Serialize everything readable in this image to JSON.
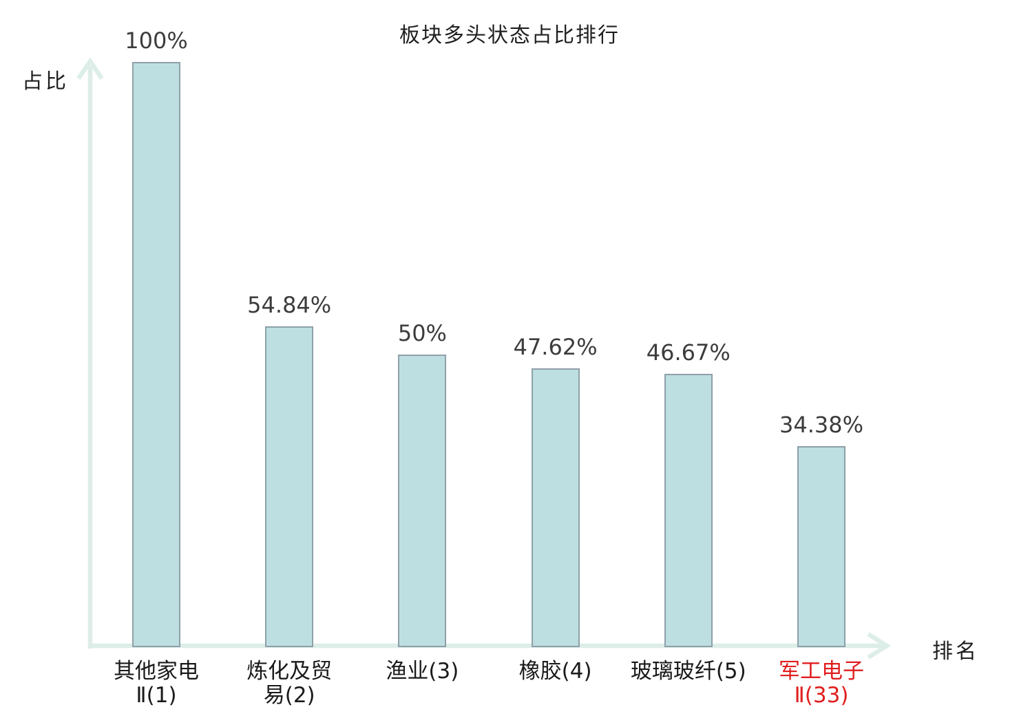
{
  "page": {
    "background": "#ffffff"
  },
  "chart_data": {
    "type": "bar",
    "title": "板块多头状态占比排行",
    "xlabel": "排名",
    "ylabel": "占比",
    "ylim": [
      0,
      100
    ],
    "grid": false,
    "legend": false,
    "categories": [
      "其他家电Ⅱ(1)",
      "炼化及贸易(2)",
      "渔业(3)",
      "橡胶(4)",
      "玻璃玻纤(5)",
      "军工电子Ⅱ(33)"
    ],
    "category_lines": [
      [
        "其他家电",
        "Ⅱ(1)"
      ],
      [
        "炼化及贸",
        "易(2)"
      ],
      [
        "渔业(3)"
      ],
      [
        "橡胶(4)"
      ],
      [
        "玻璃玻纤(5)"
      ],
      [
        "军工电子",
        "Ⅱ(33)"
      ]
    ],
    "values": [
      100,
      54.84,
      50,
      47.62,
      46.67,
      34.38
    ],
    "value_labels": [
      "100%",
      "54.84%",
      "50%",
      "47.62%",
      "46.67%",
      "34.38%"
    ],
    "highlight_index": 5,
    "colors": {
      "bar_fill": "#bedfe2",
      "bar_border": "#8da0a8",
      "axis": "#ddeee9",
      "title_text": "#1f1f1f",
      "value_text": "#3c3c3c",
      "category_text": "#1a1a1a",
      "highlight_text": "#e01e1e",
      "background": "#ffffff"
    }
  }
}
